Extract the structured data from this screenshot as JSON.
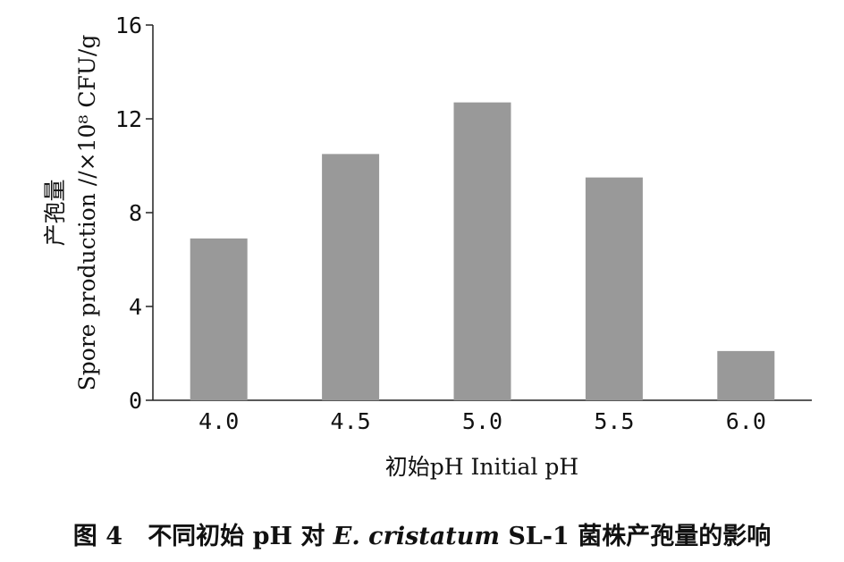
{
  "chart_data": {
    "type": "bar",
    "categories": [
      "4.0",
      "4.5",
      "5.0",
      "5.5",
      "6.0"
    ],
    "values": [
      6.9,
      10.5,
      12.7,
      9.5,
      2.1
    ],
    "ylim": [
      0,
      16
    ],
    "yticks": [
      "0",
      "4",
      "8",
      "12",
      "16"
    ],
    "ylabel_zh": "产孢量",
    "ylabel_en": "Spore production //×10⁸ CFU/g",
    "xlabel": "初始pH Initial pH",
    "bar_color": "#999999",
    "grid": false,
    "legend": "none"
  },
  "caption": {
    "figure_number": "图 4",
    "text_before": "不同初始 pH 对 ",
    "species": "E. cristatum",
    "text_after": " SL-1 菌株产孢量的影响"
  }
}
